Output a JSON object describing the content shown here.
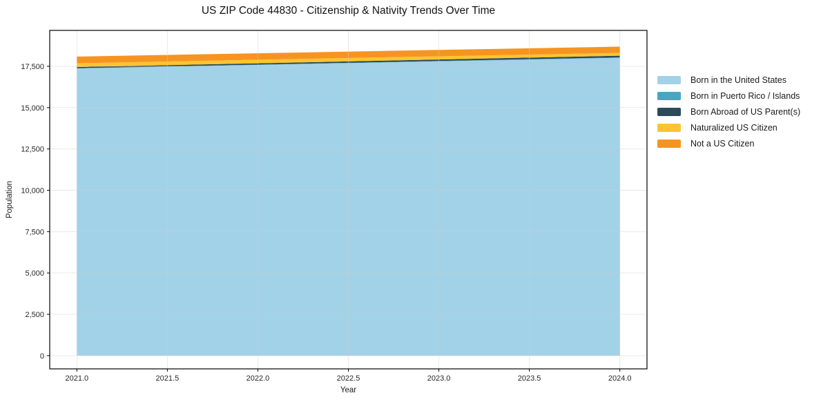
{
  "chart_data": {
    "type": "area",
    "stacked": true,
    "title": "US ZIP Code 44830 - Citizenship & Nativity Trends Over Time",
    "xlabel": "Year",
    "ylabel": "Population",
    "x": [
      2021,
      2022,
      2023,
      2024
    ],
    "series": [
      {
        "name": "Born in the United States",
        "color": "#a2d2e7",
        "values": [
          17370,
          17583,
          17797,
          18010
        ]
      },
      {
        "name": "Born in Puerto Rico / Islands",
        "color": "#4aa5c0",
        "values": [
          15,
          18,
          22,
          25
        ]
      },
      {
        "name": "Born Abroad of US Parent(s)",
        "color": "#2c4a5a",
        "values": [
          70,
          82,
          93,
          105
        ]
      },
      {
        "name": "Naturalized US Citizen",
        "color": "#fdc42f",
        "values": [
          230,
          210,
          190,
          170
        ]
      },
      {
        "name": "Not a US Citizen",
        "color": "#f69422",
        "values": [
          400,
          393,
          387,
          380
        ]
      }
    ],
    "totals": [
      18085,
      18286,
      18489,
      18690
    ],
    "xlim": [
      2020.85,
      2024.15
    ],
    "ylim": [
      -800,
      19670
    ],
    "x_ticks": [
      2021.0,
      2021.5,
      2022.0,
      2022.5,
      2023.0,
      2023.5,
      2024.0
    ],
    "x_tick_labels": [
      "2021.0",
      "2021.5",
      "2022.0",
      "2022.5",
      "2023.0",
      "2023.5",
      "2024.0"
    ],
    "y_ticks": [
      0,
      2500,
      5000,
      7500,
      10000,
      12500,
      15000,
      17500
    ],
    "y_tick_labels": [
      "0",
      "2,500",
      "5,000",
      "7,500",
      "10,000",
      "12,500",
      "15,000",
      "17,500"
    ],
    "grid": true,
    "legend_position": "right-outside",
    "frame_color": "#000000",
    "grid_color": "#cccccc",
    "tick_label_color": "#262626"
  }
}
